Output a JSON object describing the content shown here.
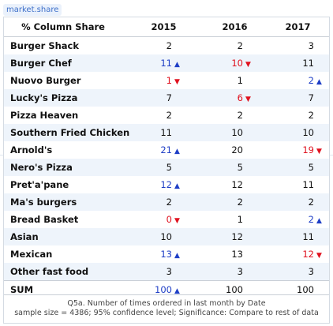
{
  "tag": "market.share",
  "table": {
    "header": {
      "label": "% Column Share",
      "columns": [
        "2015",
        "2016",
        "2017"
      ]
    },
    "colors": {
      "up": "#1f3fc6",
      "down": "#e0121f",
      "normal": "#111111"
    },
    "rows": [
      {
        "label": "Burger Shack",
        "cells": [
          {
            "v": "2",
            "d": ""
          },
          {
            "v": "2",
            "d": ""
          },
          {
            "v": "3",
            "d": ""
          }
        ]
      },
      {
        "label": "Burger Chef",
        "cells": [
          {
            "v": "11",
            "d": "up"
          },
          {
            "v": "10",
            "d": "down"
          },
          {
            "v": "11",
            "d": ""
          }
        ]
      },
      {
        "label": "Nuovo Burger",
        "cells": [
          {
            "v": "1",
            "d": "down"
          },
          {
            "v": "1",
            "d": ""
          },
          {
            "v": "2",
            "d": "up"
          }
        ]
      },
      {
        "label": "Lucky's Pizza",
        "cells": [
          {
            "v": "7",
            "d": ""
          },
          {
            "v": "6",
            "d": "down"
          },
          {
            "v": "7",
            "d": ""
          }
        ]
      },
      {
        "label": "Pizza Heaven",
        "cells": [
          {
            "v": "2",
            "d": ""
          },
          {
            "v": "2",
            "d": ""
          },
          {
            "v": "2",
            "d": ""
          }
        ]
      },
      {
        "label": "Southern Fried Chicken",
        "cells": [
          {
            "v": "11",
            "d": ""
          },
          {
            "v": "10",
            "d": ""
          },
          {
            "v": "10",
            "d": ""
          }
        ]
      },
      {
        "label": "Arnold's",
        "cells": [
          {
            "v": "21",
            "d": "up"
          },
          {
            "v": "20",
            "d": ""
          },
          {
            "v": "19",
            "d": "down"
          }
        ]
      },
      {
        "label": "Nero's Pizza",
        "cells": [
          {
            "v": "5",
            "d": ""
          },
          {
            "v": "5",
            "d": ""
          },
          {
            "v": "5",
            "d": ""
          }
        ]
      },
      {
        "label": "Pret'a'pane",
        "cells": [
          {
            "v": "12",
            "d": "up"
          },
          {
            "v": "12",
            "d": ""
          },
          {
            "v": "11",
            "d": ""
          }
        ]
      },
      {
        "label": "Ma's burgers",
        "cells": [
          {
            "v": "2",
            "d": ""
          },
          {
            "v": "2",
            "d": ""
          },
          {
            "v": "2",
            "d": ""
          }
        ]
      },
      {
        "label": "Bread Basket",
        "cells": [
          {
            "v": "0",
            "d": "down"
          },
          {
            "v": "1",
            "d": ""
          },
          {
            "v": "2",
            "d": "up"
          }
        ]
      },
      {
        "label": "Asian",
        "cells": [
          {
            "v": "10",
            "d": ""
          },
          {
            "v": "12",
            "d": ""
          },
          {
            "v": "11",
            "d": ""
          }
        ]
      },
      {
        "label": "Mexican",
        "cells": [
          {
            "v": "13",
            "d": "up"
          },
          {
            "v": "13",
            "d": ""
          },
          {
            "v": "12",
            "d": "down"
          }
        ]
      },
      {
        "label": "Other fast food",
        "cells": [
          {
            "v": "3",
            "d": ""
          },
          {
            "v": "3",
            "d": ""
          },
          {
            "v": "3",
            "d": ""
          }
        ]
      },
      {
        "label": "SUM",
        "cells": [
          {
            "v": "100",
            "d": "up"
          },
          {
            "v": "100",
            "d": ""
          },
          {
            "v": "100",
            "d": ""
          }
        ]
      }
    ],
    "footer": {
      "line1": "Q5a. Number of times ordered in last month by Date",
      "line2": "sample size = 4386; 95% confidence level; Significance: Compare to rest of data"
    }
  }
}
